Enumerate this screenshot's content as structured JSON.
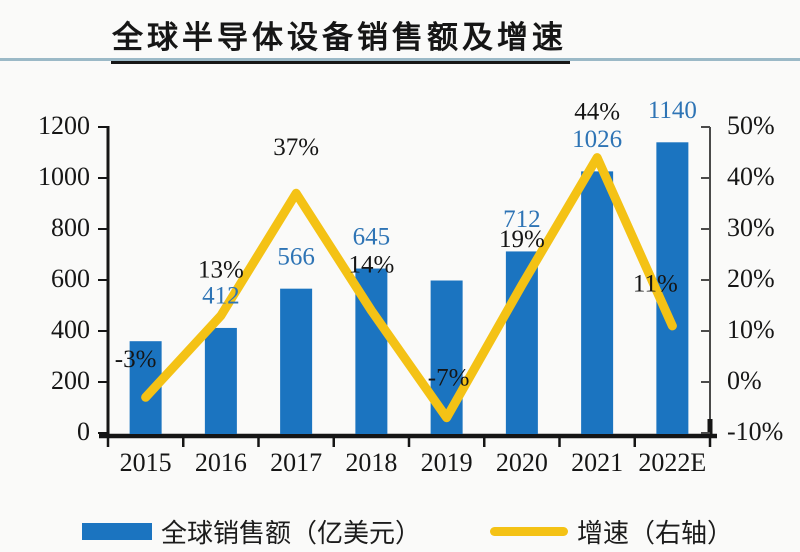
{
  "title": "全球半导体设备销售额及增速",
  "legend": {
    "items": [
      {
        "label": "全球销售额（亿美元）",
        "swatch": "bar",
        "color": "#1b74c0"
      },
      {
        "label": "增速（右轴）",
        "swatch": "line",
        "color": "#f4c215"
      }
    ]
  },
  "colors": {
    "bar": "#1b74c0",
    "line": "#f4c215",
    "value_label": "#2e74b5",
    "pct_label": "#151515",
    "axis": "#151515",
    "right_axis": "#4a4a4a",
    "title_rule": "#9bb9c7",
    "background": "#fafaf9"
  },
  "chart_data": {
    "type": "bar",
    "subtype": "bar-with-line-overlay",
    "title": "全球半导体设备销售额及增速",
    "categories": [
      "2015",
      "2016",
      "2017",
      "2018",
      "2019",
      "2020",
      "2021",
      "2022E"
    ],
    "series": [
      {
        "name": "全球销售额（亿美元）",
        "type": "bar",
        "axis": "left",
        "values": [
          360,
          412,
          566,
          645,
          598,
          712,
          1026,
          1140
        ],
        "value_labels": [
          "",
          "412",
          "566",
          "645",
          "",
          "712",
          "1026",
          "1140"
        ],
        "color": "#1b74c0"
      },
      {
        "name": "增速（右轴）",
        "type": "line",
        "axis": "right",
        "values": [
          -3,
          13,
          37,
          14,
          -7,
          19,
          44,
          11
        ],
        "value_labels": [
          "-3%",
          "13%",
          "37%",
          "14%",
          "-7%",
          "19%",
          "44%",
          "11%"
        ],
        "color": "#f4c215"
      }
    ],
    "left_axis": {
      "min": 0,
      "max": 1200,
      "step": 200,
      "tick_labels": [
        "1200",
        "1000",
        "800",
        "600",
        "400",
        "200",
        "0"
      ]
    },
    "right_axis": {
      "min": -10,
      "max": 50,
      "step": 10,
      "tick_labels": [
        "50%",
        "40%",
        "30%",
        "20%",
        "10%",
        "0%",
        "-10%"
      ]
    },
    "grid": false,
    "legend_position": "bottom"
  }
}
